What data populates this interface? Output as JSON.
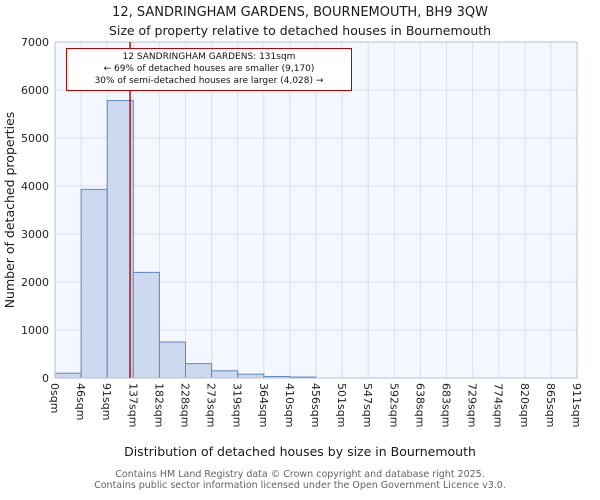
{
  "chart_data": {
    "type": "bar",
    "title": "12, SANDRINGHAM GARDENS, BOURNEMOUTH, BH9 3QW",
    "subtitle": "Size of property relative to detached houses in Bournemouth",
    "xlabel": "Distribution of detached houses by size in Bournemouth",
    "ylabel": "Number of detached properties",
    "categories": [
      "0sqm",
      "46sqm",
      "91sqm",
      "137sqm",
      "182sqm",
      "228sqm",
      "273sqm",
      "319sqm",
      "364sqm",
      "410sqm",
      "456sqm",
      "501sqm",
      "547sqm",
      "592sqm",
      "638sqm",
      "683sqm",
      "729sqm",
      "774sqm",
      "820sqm",
      "865sqm",
      "911sqm"
    ],
    "bin_edges_sqm": [
      0,
      46,
      91,
      137,
      182,
      228,
      273,
      319,
      364,
      410,
      456,
      501,
      547,
      592,
      638,
      683,
      729,
      774,
      820,
      865,
      911
    ],
    "values": [
      100,
      3930,
      5780,
      2200,
      750,
      300,
      150,
      80,
      30,
      20,
      0,
      0,
      0,
      0,
      0,
      0,
      0,
      0,
      0,
      0
    ],
    "ylim": [
      0,
      7000
    ],
    "yticks": [
      0,
      1000,
      2000,
      3000,
      4000,
      5000,
      6000,
      7000
    ],
    "grid": true,
    "marker_value_sqm": 131,
    "annotation": {
      "line1": "12 SANDRINGHAM GARDENS: 131sqm",
      "line2": "← 69% of detached houses are smaller (9,170)",
      "line3": "30% of semi-detached houses are larger (4,028) →"
    },
    "colors": {
      "bar_fill": "#ccd9ee",
      "bar_border": "#5b87c7",
      "marker_line": "#991717",
      "grid": "#d9e2f0",
      "plot_border": "#b6c2d6",
      "plot_bg": "#f4f7fd",
      "annotation_border": "#bb0000"
    }
  },
  "footer": {
    "line1": "Contains HM Land Registry data © Crown copyright and database right 2025.",
    "line2": "Contains public sector information licensed under the Open Government Licence v3.0."
  }
}
